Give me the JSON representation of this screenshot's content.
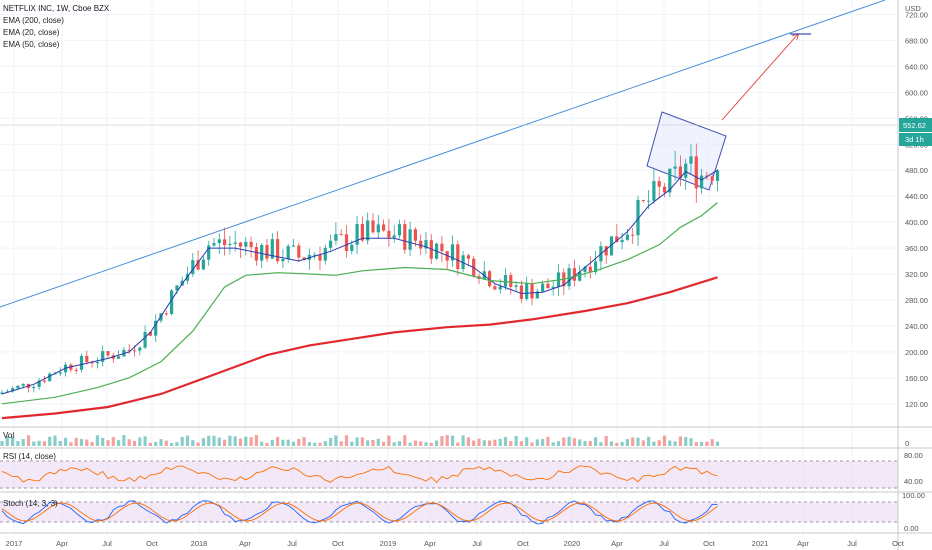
{
  "header": {
    "symbol": "NETFLIX INC, 1W, Cboe BZX",
    "indicators": [
      "EMA (200, close)",
      "EMA (20, close)",
      "EMA (50, close)"
    ],
    "currency": "USD"
  },
  "panes": {
    "volume_label": "Vol",
    "rsi_label": "RSI (14, close)",
    "stoch_label": "Stoch (14, 3, 3)"
  },
  "price_box": {
    "price": "552.62",
    "countdown": "3d 1h"
  },
  "colors": {
    "up": "#26a69a",
    "down": "#ef5350",
    "ema20": "#2b3aae",
    "ema50": "#4caf50",
    "ema200": "#e0282e",
    "trendline": "#4a90d9",
    "arrow": "#e53935",
    "channel": "#3f51b5",
    "rsi": "#ff6f00",
    "rsi_band": "#e8d6f2",
    "stoch_k": "#2962ff",
    "stoch_d": "#ff6d00"
  },
  "chart_data": {
    "type": "candlestick",
    "title": "NETFLIX INC, 1W, Cboe BZX",
    "x_tick_labels": [
      "2017",
      "Apr",
      "Jul",
      "Oct",
      "2018",
      "Apr",
      "Jul",
      "Oct",
      "2019",
      "Apr",
      "Jul",
      "Oct",
      "2020",
      "Apr",
      "Jul",
      "Oct",
      "2021",
      "Apr",
      "Jul",
      "Oct"
    ],
    "y_ticks": [
      120,
      160,
      200,
      240,
      280,
      320,
      360,
      400,
      440,
      480,
      520,
      560,
      600,
      640,
      680,
      720
    ],
    "ylim": [
      95,
      730
    ],
    "series": [
      {
        "name": "EMA (20, close)",
        "points": [
          [
            0,
            135
          ],
          [
            6,
            150
          ],
          [
            12,
            175
          ],
          [
            20,
            190
          ],
          [
            24,
            200
          ],
          [
            28,
            230
          ],
          [
            34,
            305
          ],
          [
            39,
            360
          ],
          [
            44,
            360
          ],
          [
            50,
            350
          ],
          [
            56,
            340
          ],
          [
            62,
            355
          ],
          [
            68,
            375
          ],
          [
            74,
            375
          ],
          [
            80,
            362
          ],
          [
            85,
            345
          ],
          [
            89,
            330
          ],
          [
            93,
            305
          ],
          [
            98,
            290
          ],
          [
            102,
            292
          ],
          [
            106,
            303
          ],
          [
            110,
            330
          ],
          [
            114,
            358
          ],
          [
            118,
            385
          ],
          [
            122,
            425
          ],
          [
            126,
            450
          ],
          [
            129,
            478
          ],
          [
            132,
            465
          ],
          [
            135,
            480
          ]
        ]
      },
      {
        "name": "EMA (50, close)",
        "points": [
          [
            0,
            120
          ],
          [
            10,
            130
          ],
          [
            18,
            145
          ],
          [
            24,
            160
          ],
          [
            30,
            185
          ],
          [
            36,
            232
          ],
          [
            42,
            300
          ],
          [
            46,
            318
          ],
          [
            52,
            322
          ],
          [
            58,
            320
          ],
          [
            63,
            318
          ],
          [
            68,
            325
          ],
          [
            76,
            330
          ],
          [
            84,
            327
          ],
          [
            92,
            310
          ],
          [
            100,
            305
          ],
          [
            106,
            312
          ],
          [
            112,
            325
          ],
          [
            118,
            342
          ],
          [
            124,
            365
          ],
          [
            128,
            392
          ],
          [
            132,
            410
          ],
          [
            135,
            430
          ]
        ]
      },
      {
        "name": "EMA (200, close)",
        "points": [
          [
            0,
            98
          ],
          [
            10,
            105
          ],
          [
            20,
            115
          ],
          [
            30,
            135
          ],
          [
            40,
            165
          ],
          [
            50,
            195
          ],
          [
            58,
            210
          ],
          [
            66,
            220
          ],
          [
            74,
            230
          ],
          [
            84,
            238
          ],
          [
            92,
            242
          ],
          [
            100,
            250
          ],
          [
            110,
            263
          ],
          [
            118,
            275
          ],
          [
            126,
            292
          ],
          [
            135,
            315
          ]
        ]
      }
    ],
    "rsi_ticks": [
      40.0,
      80.0
    ],
    "stoch_ticks": [
      0.0,
      100.0
    ],
    "annotations": [
      "Uptrend line",
      "Rising channel",
      "Target arrow"
    ]
  }
}
